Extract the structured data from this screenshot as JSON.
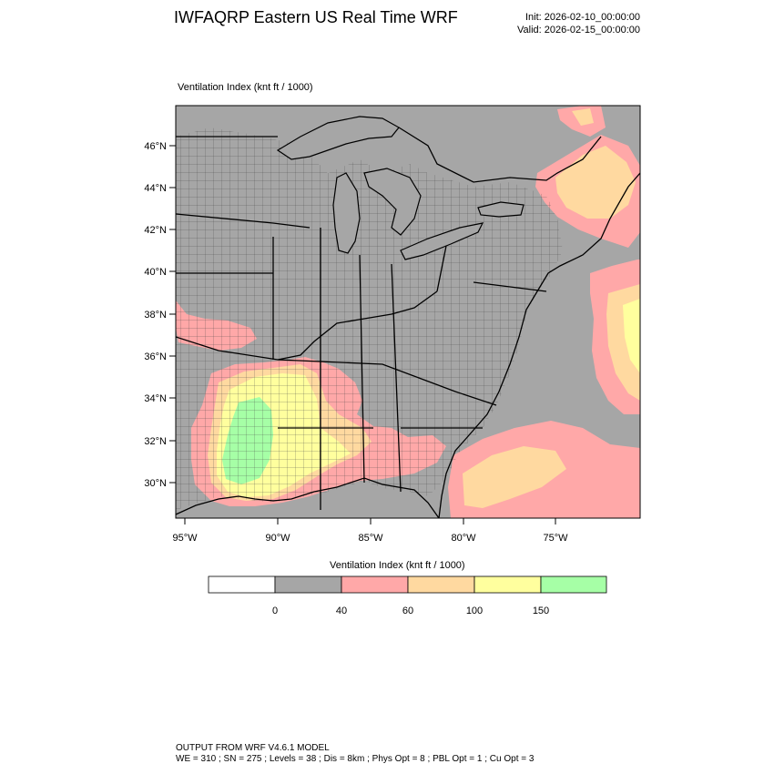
{
  "header": {
    "title": "IWFAQRP Eastern US Real Time WRF",
    "init": "Init: 2026-02-10_00:00:00",
    "valid": "Valid: 2026-02-15_00:00:00"
  },
  "map": {
    "panel_label": "Ventilation Index   (knt ft / 1000)",
    "lat_labels": [
      "46°N",
      "44°N",
      "42°N",
      "40°N",
      "38°N",
      "36°N",
      "34°N",
      "32°N",
      "30°N"
    ],
    "lon_labels": [
      "95°W",
      "90°W",
      "85°W",
      "80°W",
      "75°W"
    ],
    "extent": {
      "lon_min": -95.5,
      "lon_max": -70.5,
      "lat_min": 28.5,
      "lat_max": 47.8
    }
  },
  "colorbar": {
    "title": "Ventilation Index  (knt ft / 1000)",
    "tick_labels": [
      "0",
      "40",
      "60",
      "100",
      "150"
    ],
    "colors": [
      "#ffffff",
      "#a6a6a6",
      "#ffa8a8",
      "#ffd9a0",
      "#ffff9e",
      "#a6ffa6"
    ]
  },
  "footer": {
    "line1": "OUTPUT FROM WRF V4.6.1 MODEL",
    "line2": "WE = 310 ; SN = 275 ; Levels = 38 ; Dis = 8km ; Phys Opt = 8 ; PBL Opt = 1 ; Cu Opt = 3"
  }
}
